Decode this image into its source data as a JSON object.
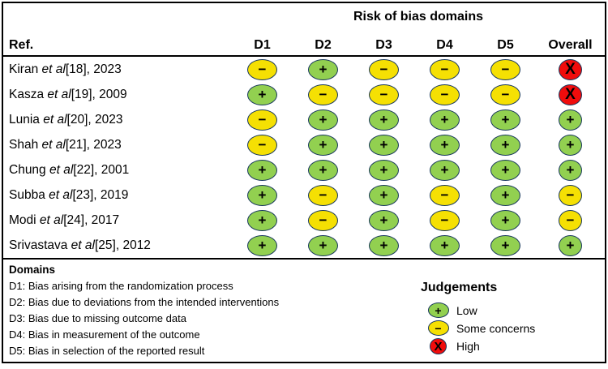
{
  "figure": {
    "title": "Risk of bias domains",
    "ref_column_label": "Ref."
  },
  "columns": [
    "D1",
    "D2",
    "D3",
    "D4",
    "D5",
    "Overall"
  ],
  "symbols": {
    "low": "+",
    "some": "−",
    "high": "X"
  },
  "colors": {
    "low": "#92D050",
    "some": "#F5E003",
    "high": "#F00C0C",
    "outline": "#16365C"
  },
  "rows": [
    {
      "pre": "Kiran ",
      "etal": "et al",
      "post": "[18], 2023",
      "cells": [
        "some",
        "low",
        "some",
        "some",
        "some",
        "high"
      ]
    },
    {
      "pre": "Kasza ",
      "etal": "et al",
      "post": "[19], 2009",
      "cells": [
        "low",
        "some",
        "some",
        "some",
        "some",
        "high"
      ]
    },
    {
      "pre": "Lunia ",
      "etal": "et al",
      "post": "[20], 2023",
      "cells": [
        "some",
        "low",
        "low",
        "low",
        "low",
        "low"
      ]
    },
    {
      "pre": "Shah ",
      "etal": "et al",
      "post": "[21], 2023",
      "cells": [
        "some",
        "low",
        "low",
        "low",
        "low",
        "low"
      ]
    },
    {
      "pre": "Chung ",
      "etal": "et al",
      "post": "[22], 2001",
      "cells": [
        "low",
        "low",
        "low",
        "low",
        "low",
        "low"
      ]
    },
    {
      "pre": "Subba ",
      "etal": "et al",
      "post": "[23], 2019",
      "cells": [
        "low",
        "some",
        "low",
        "some",
        "low",
        "some"
      ]
    },
    {
      "pre": "Modi ",
      "etal": "et al",
      "post": "[24], 2017",
      "cells": [
        "low",
        "some",
        "low",
        "some",
        "low",
        "some"
      ]
    },
    {
      "pre": "Srivastava ",
      "etal": "et al",
      "post": "[25], 2012",
      "cells": [
        "low",
        "low",
        "low",
        "low",
        "low",
        "low"
      ]
    }
  ],
  "footer": {
    "domains_title": "Domains",
    "domains": [
      "D1: Bias arising from the randomization process",
      "D2: Bias due to deviations from the intended interventions",
      "D3: Bias due to missing outcome data",
      "D4: Bias in measurement of the outcome",
      "D5: Bias in selection of the reported result"
    ],
    "judgements_title": "Judgements",
    "legend": [
      {
        "judgement": "low",
        "symbol": "+",
        "label": "Low"
      },
      {
        "judgement": "some",
        "symbol": "−",
        "label": "Some concerns"
      },
      {
        "judgement": "high",
        "symbol": "X",
        "label": "High"
      }
    ]
  },
  "chart_data": {
    "type": "table",
    "title": "Risk of bias domains",
    "columns": [
      "D1",
      "D2",
      "D3",
      "D4",
      "D5",
      "Overall"
    ],
    "studies": [
      "Kiran et al[18], 2023",
      "Kasza et al[19], 2009",
      "Lunia et al[20], 2023",
      "Shah et al[21], 2023",
      "Chung et al[22], 2001",
      "Subba et al[23], 2019",
      "Modi et al[24], 2017",
      "Srivastava et al[25], 2012"
    ],
    "judgements": [
      [
        "Some concerns",
        "Low",
        "Some concerns",
        "Some concerns",
        "Some concerns",
        "High"
      ],
      [
        "Low",
        "Some concerns",
        "Some concerns",
        "Some concerns",
        "Some concerns",
        "High"
      ],
      [
        "Some concerns",
        "Low",
        "Low",
        "Low",
        "Low",
        "Low"
      ],
      [
        "Some concerns",
        "Low",
        "Low",
        "Low",
        "Low",
        "Low"
      ],
      [
        "Low",
        "Low",
        "Low",
        "Low",
        "Low",
        "Low"
      ],
      [
        "Low",
        "Some concerns",
        "Low",
        "Some concerns",
        "Low",
        "Some concerns"
      ],
      [
        "Low",
        "Some concerns",
        "Low",
        "Some concerns",
        "Low",
        "Some concerns"
      ],
      [
        "Low",
        "Low",
        "Low",
        "Low",
        "Low",
        "Low"
      ]
    ],
    "legend": {
      "Low": "green ellipse with plus",
      "Some concerns": "yellow ellipse with minus",
      "High": "red circle with X"
    },
    "domain_definitions": [
      "D1: Bias arising from the randomization process",
      "D2: Bias due to deviations from the intended interventions",
      "D3: Bias due to missing outcome data",
      "D4: Bias in measurement of the outcome",
      "D5: Bias in selection of the reported result"
    ]
  }
}
